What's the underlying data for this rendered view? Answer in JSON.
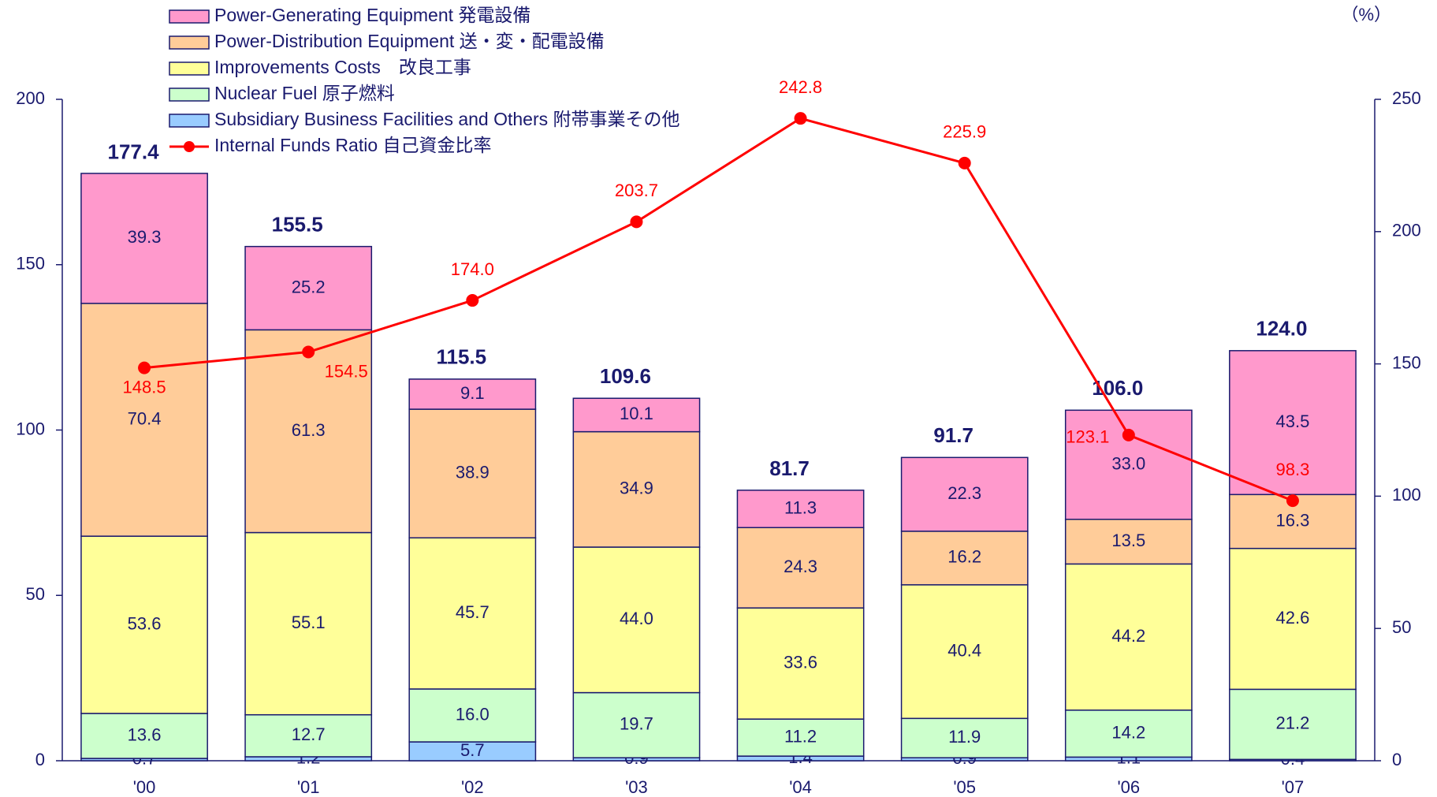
{
  "chart_data": {
    "type": "bar",
    "categories": [
      "'00",
      "'01",
      "'02",
      "'03",
      "'04",
      "'05",
      "'06",
      "'07"
    ],
    "series": [
      {
        "name": "Power-Generating Equipment  発電設備",
        "color": "#ff99cc",
        "values": [
          39.3,
          25.2,
          9.1,
          10.1,
          11.3,
          22.3,
          33.0,
          43.5
        ],
        "value_labels": [
          "39.3",
          "25.2",
          "9.1",
          "10.1",
          "11.3",
          "22.3",
          "33.0",
          "43.5"
        ]
      },
      {
        "name": "Power-Distribution Equipment  送・変・配電設備",
        "color": "#ffcc99",
        "values": [
          70.4,
          61.3,
          38.9,
          34.9,
          24.3,
          16.2,
          13.5,
          16.3
        ],
        "value_labels": [
          "70.4",
          "61.3",
          "38.9",
          "34.9",
          "24.3",
          "16.2",
          "13.5",
          "16.3"
        ]
      },
      {
        "name": "Improvements Costs　改良工事",
        "color": "#ffff99",
        "values": [
          53.6,
          55.1,
          45.7,
          44.0,
          33.6,
          40.4,
          44.2,
          42.6
        ],
        "value_labels": [
          "53.6",
          "55.1",
          "45.7",
          "44.0",
          "33.6",
          "40.4",
          "44.2",
          "42.6"
        ]
      },
      {
        "name": "Nuclear Fuel  原子燃料",
        "color": "#ccffcc",
        "values": [
          13.6,
          12.7,
          16.0,
          19.7,
          11.2,
          11.9,
          14.2,
          21.2
        ],
        "value_labels": [
          "13.6",
          "12.7",
          "16.0",
          "19.7",
          "11.2",
          "11.9",
          "14.2",
          "21.2"
        ]
      },
      {
        "name": "Subsidiary Business Facilities and Others  附帯事業その他",
        "color": "#99ccff",
        "values": [
          0.7,
          1.2,
          5.7,
          0.9,
          1.4,
          0.9,
          1.1,
          0.4
        ],
        "value_labels": [
          "0.7",
          "1.2",
          "5.7",
          "0.9",
          "1.4",
          "0.9",
          "1.1",
          "0.4"
        ]
      },
      {
        "name": "Internal Funds Ratio 自己資金比率",
        "type": "line",
        "axis": "y2",
        "color": "#ff0000",
        "values": [
          148.5,
          154.5,
          174.0,
          203.7,
          242.8,
          225.9,
          123.1,
          98.3
        ],
        "value_labels": [
          "148.5",
          "154.5",
          "174.0",
          "203.7",
          "242.8",
          "225.9",
          "123.1",
          "98.3"
        ]
      }
    ],
    "totals": {
      "values": [
        177.4,
        155.5,
        115.5,
        109.6,
        81.7,
        91.7,
        106.0,
        124.0
      ],
      "value_labels": [
        "177.4",
        "155.5",
        "115.5",
        "109.6",
        "81.7",
        "91.7",
        "106.0",
        "124.0"
      ]
    },
    "ylim": [
      0,
      200
    ],
    "yticks": [
      0,
      50,
      100,
      150,
      200
    ],
    "y2lim": [
      0,
      250
    ],
    "y2ticks": [
      0,
      50,
      100,
      150,
      200,
      250
    ],
    "y2_label": "（%）"
  }
}
